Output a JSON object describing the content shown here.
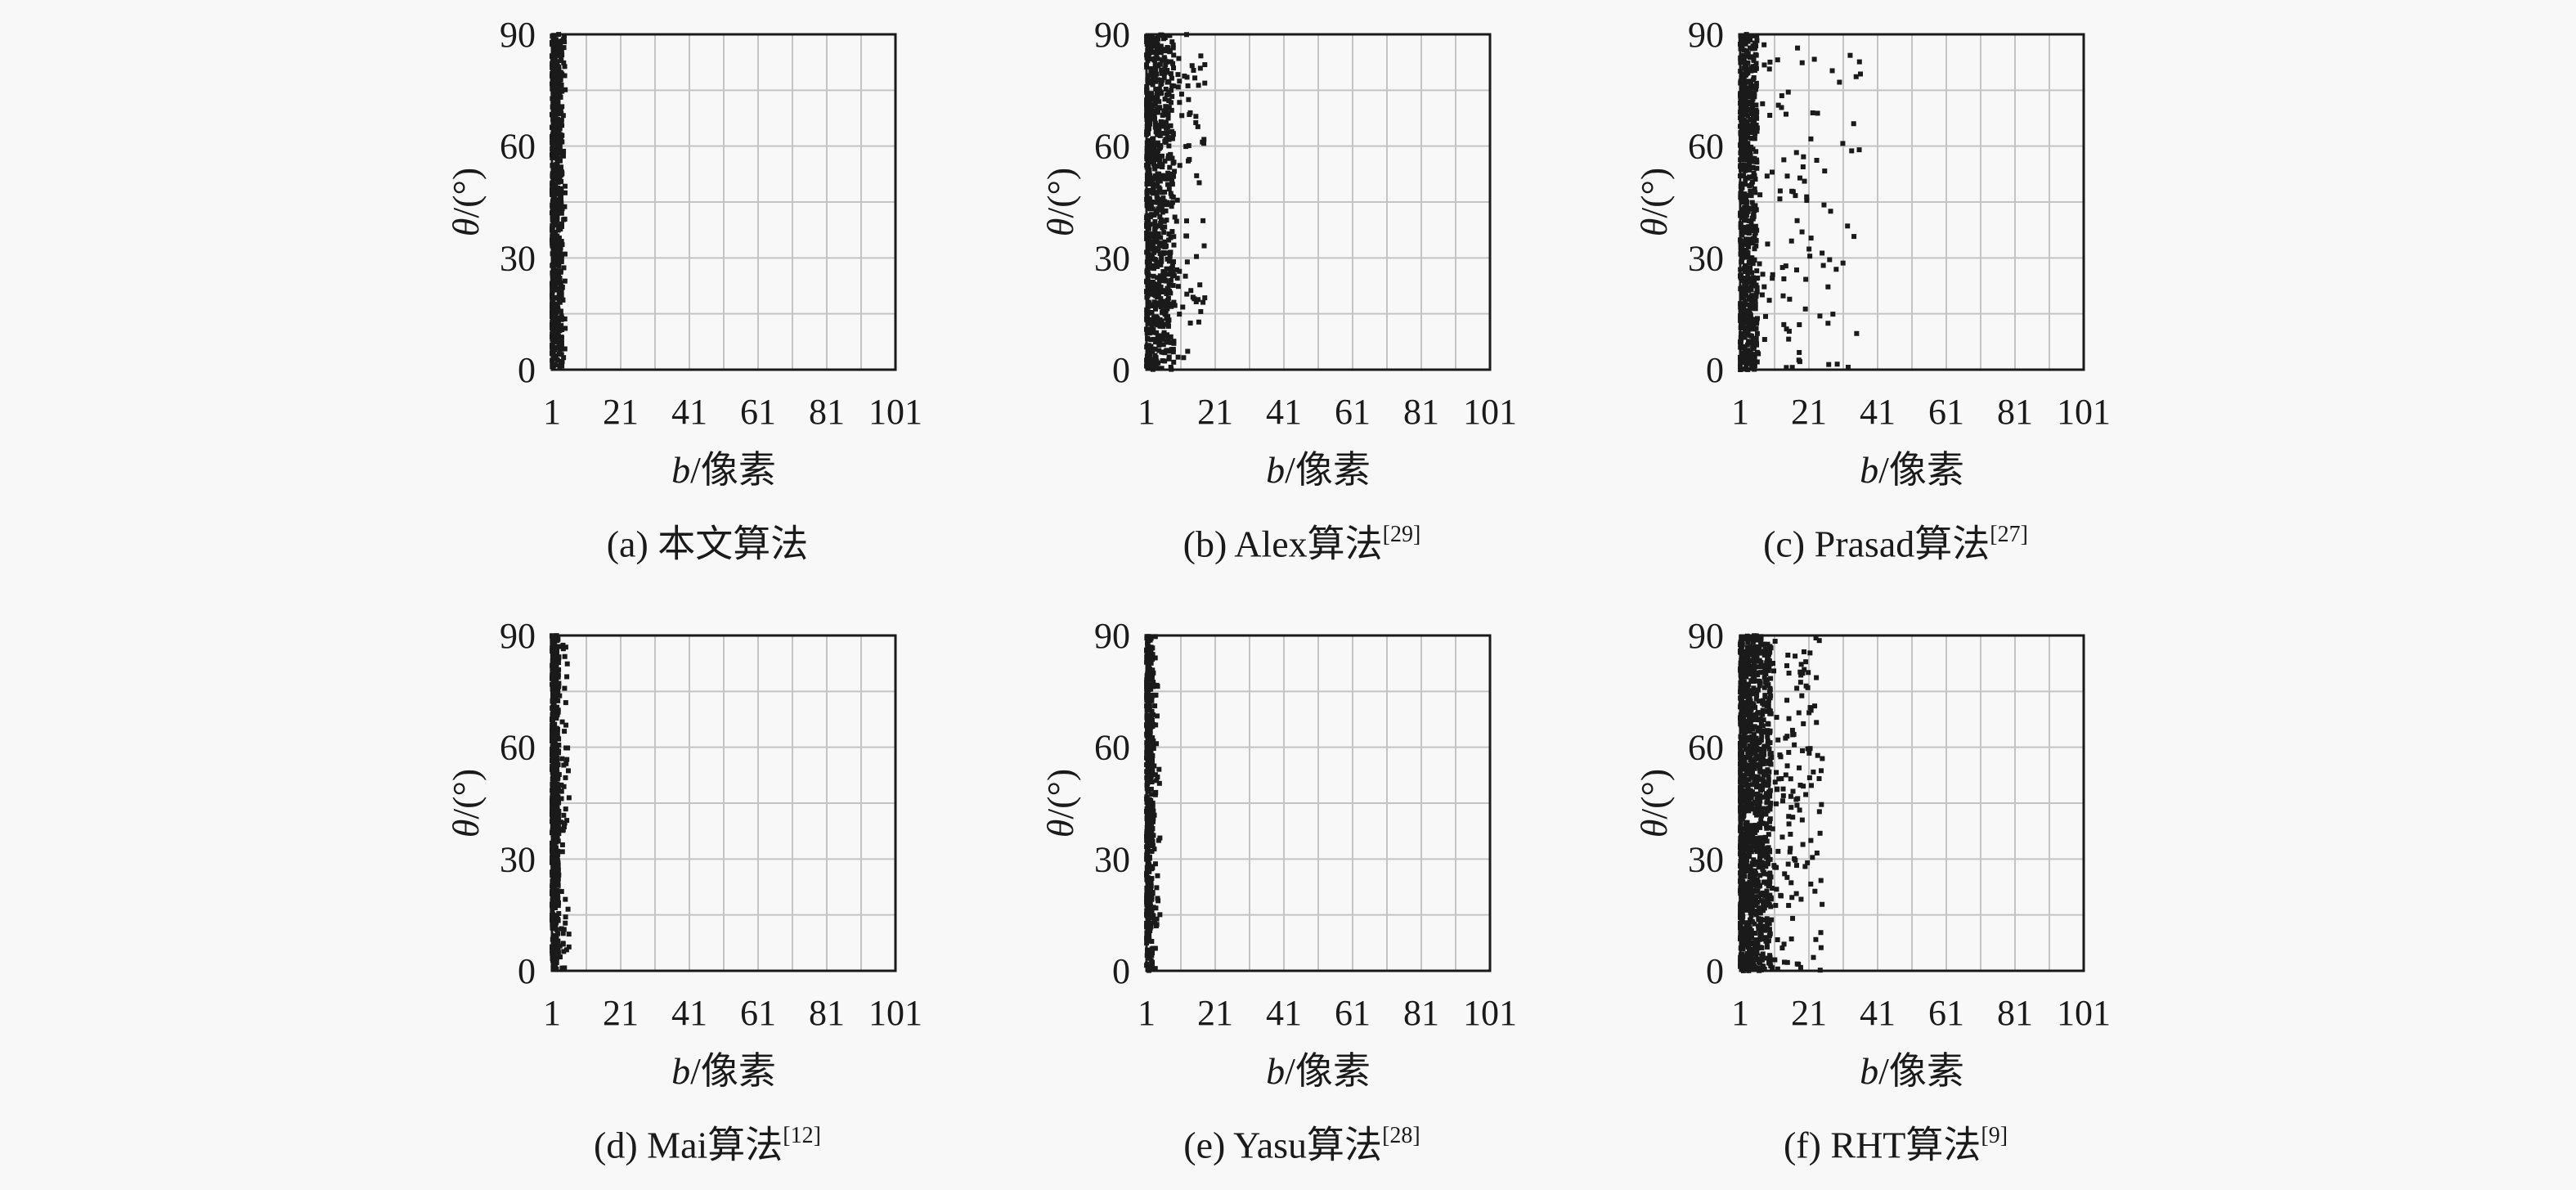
{
  "colors": {
    "points": "#1a1a1a",
    "grid": "#c4c4c4",
    "frame": "#1a1a1a",
    "background": "#f8f8f8"
  },
  "chart_data": [
    {
      "type": "scatter",
      "xlabel": "b/像素",
      "ylabel": "θ/(°)",
      "xlim": [
        1,
        101
      ],
      "ylim": [
        0,
        90
      ],
      "xticks": [
        "1",
        "21",
        "41",
        "61",
        "81",
        "101"
      ],
      "yticks": [
        "0",
        "30",
        "60",
        "90"
      ],
      "grid": true,
      "caption": "(a) 本文算法",
      "caption_ref": "",
      "distribution": {
        "b_min": 1,
        "b_core_max": 4,
        "b_max": 5,
        "theta_max": 90,
        "point_count": 700
      }
    },
    {
      "type": "scatter",
      "xlabel": "b/像素",
      "ylabel": "θ/(°)",
      "xlim": [
        1,
        101
      ],
      "ylim": [
        0,
        90
      ],
      "xticks": [
        "1",
        "21",
        "41",
        "61",
        "81",
        "101"
      ],
      "yticks": [
        "0",
        "30",
        "60",
        "90"
      ],
      "grid": true,
      "caption": "(b) Alex算法",
      "caption_ref": "[29]",
      "distribution": {
        "b_min": 1,
        "b_core_max": 9,
        "b_max": 18,
        "theta_max": 90,
        "point_count": 900
      }
    },
    {
      "type": "scatter",
      "xlabel": "b/像素",
      "ylabel": "θ/(°)",
      "xlim": [
        1,
        101
      ],
      "ylim": [
        0,
        90
      ],
      "xticks": [
        "1",
        "21",
        "41",
        "61",
        "81",
        "101"
      ],
      "yticks": [
        "0",
        "30",
        "60",
        "90"
      ],
      "grid": true,
      "caption": "(c) Prasad算法",
      "caption_ref": "[27]",
      "distribution": {
        "b_min": 1,
        "b_core_max": 6,
        "b_max": 36,
        "theta_max": 90,
        "point_count": 800
      }
    },
    {
      "type": "scatter",
      "xlabel": "b/像素",
      "ylabel": "θ/(°)",
      "xlim": [
        1,
        101
      ],
      "ylim": [
        0,
        90
      ],
      "xticks": [
        "1",
        "21",
        "41",
        "61",
        "81",
        "101"
      ],
      "yticks": [
        "0",
        "30",
        "60",
        "90"
      ],
      "grid": true,
      "caption": "(d) Mai算法",
      "caption_ref": "[12]",
      "distribution": {
        "b_min": 1,
        "b_core_max": 3,
        "b_max": 6,
        "theta_max": 90,
        "point_count": 600
      }
    },
    {
      "type": "scatter",
      "xlabel": "b/像素",
      "ylabel": "θ/(°)",
      "xlim": [
        1,
        101
      ],
      "ylim": [
        0,
        90
      ],
      "xticks": [
        "1",
        "21",
        "41",
        "61",
        "81",
        "101"
      ],
      "yticks": [
        "0",
        "30",
        "60",
        "90"
      ],
      "grid": true,
      "caption": "(e) Yasu算法",
      "caption_ref": "[28]",
      "distribution": {
        "b_min": 1,
        "b_core_max": 3,
        "b_max": 5,
        "theta_max": 90,
        "point_count": 500
      }
    },
    {
      "type": "scatter",
      "xlabel": "b/像素",
      "ylabel": "θ/(°)",
      "xlim": [
        1,
        101
      ],
      "ylim": [
        0,
        90
      ],
      "xticks": [
        "1",
        "21",
        "41",
        "61",
        "81",
        "101"
      ],
      "yticks": [
        "0",
        "30",
        "60",
        "90"
      ],
      "grid": true,
      "caption": "(f) RHT算法",
      "caption_ref": "[9]",
      "distribution": {
        "b_min": 1,
        "b_core_max": 10,
        "b_max": 25,
        "theta_max": 90,
        "point_count": 1400
      }
    }
  ]
}
